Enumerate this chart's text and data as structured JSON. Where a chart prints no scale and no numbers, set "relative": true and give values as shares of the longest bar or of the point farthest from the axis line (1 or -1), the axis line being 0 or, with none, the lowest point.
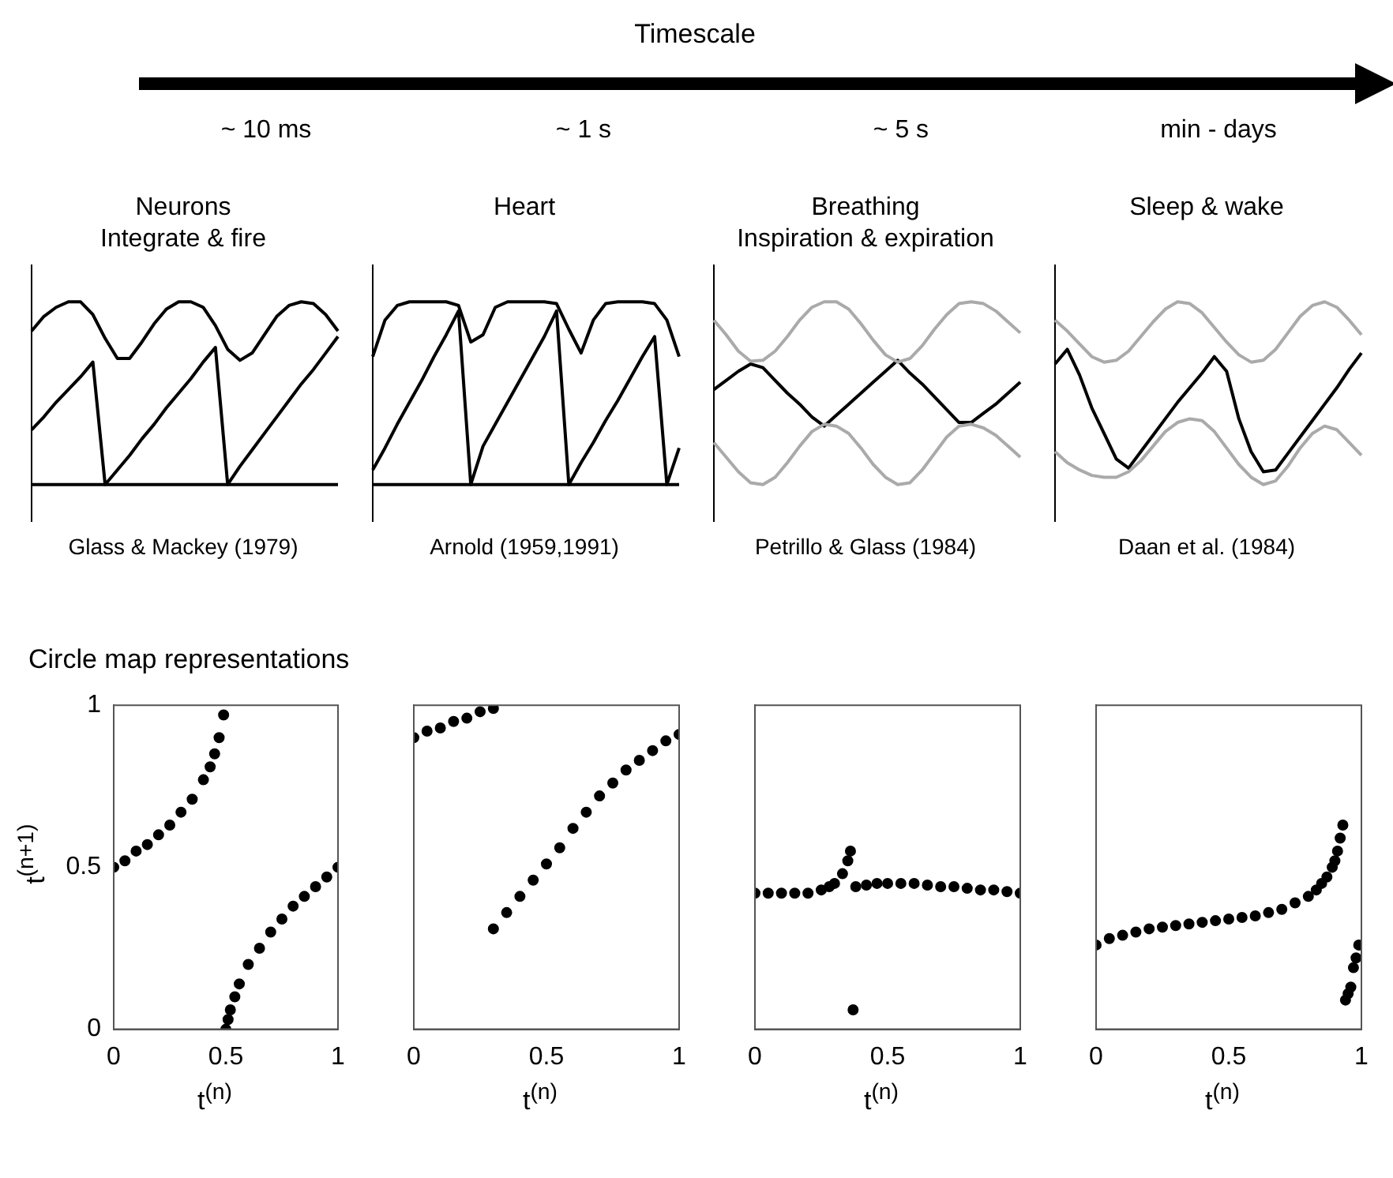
{
  "chart_data": [
    {
      "type": "other",
      "title": "Timescale",
      "annotations": [
        "~ 10 ms",
        "~ 1 s",
        "~ 5 s",
        "min - days"
      ]
    },
    {
      "type": "line",
      "title": "Neurons",
      "subtitle": "Integrate & fire",
      "annotations": [
        "Glass & Mackey (1979)"
      ],
      "relative": true,
      "marker": "none",
      "categories": [
        null,
        null,
        null,
        null,
        null,
        null,
        null,
        null,
        null,
        null,
        null,
        null,
        null,
        null,
        null,
        null,
        null,
        null,
        null,
        null,
        null,
        null,
        null,
        null,
        null,
        null
      ],
      "series": [
        {
          "color": "#000000",
          "values": [
            0.84,
            0.92,
            0.97,
            1.0,
            1.0,
            0.93,
            0.8,
            0.69,
            0.69,
            0.78,
            0.88,
            0.96,
            1.0,
            1.0,
            0.97,
            0.87,
            0.74,
            0.68,
            0.72,
            0.82,
            0.92,
            0.98,
            1.0,
            0.99,
            0.93,
            0.84
          ]
        },
        {
          "color": "#000000",
          "values": [
            0.3,
            0.37,
            0.45,
            0.52,
            0.59,
            0.67,
            0,
            0.08,
            0.16,
            0.25,
            0.33,
            0.42,
            0.5,
            0.58,
            0.67,
            0.75,
            0,
            0.1,
            0.19,
            0.28,
            0.37,
            0.46,
            0.55,
            0.63,
            0.72,
            0.81
          ]
        },
        {
          "color": "#000000",
          "values": [
            0,
            0,
            0,
            0,
            0,
            0,
            0,
            0,
            0,
            0,
            0,
            0,
            0,
            0,
            0,
            0,
            0,
            0,
            0,
            0,
            0,
            0,
            0,
            0,
            0,
            0
          ]
        }
      ]
    },
    {
      "type": "line",
      "title": "Heart",
      "annotations": [
        "Arnold (1959,1991)"
      ],
      "relative": true,
      "marker": "none",
      "categories": [
        null,
        null,
        null,
        null,
        null,
        null,
        null,
        null,
        null,
        null,
        null,
        null,
        null,
        null,
        null,
        null,
        null,
        null,
        null,
        null,
        null,
        null,
        null,
        null,
        null,
        null
      ],
      "series": [
        {
          "color": "#000000",
          "values": [
            0.7,
            0.9,
            0.98,
            1,
            1,
            1,
            1,
            0.98,
            0.78,
            0.82,
            0.97,
            1,
            1,
            1,
            1,
            0.99,
            0.85,
            0.72,
            0.9,
            0.99,
            1,
            1,
            1,
            0.99,
            0.9,
            0.7
          ]
        },
        {
          "color": "#000000",
          "values": [
            0.08,
            0.2,
            0.33,
            0.45,
            0.57,
            0.7,
            0.82,
            0.95,
            0,
            0.21,
            0.33,
            0.45,
            0.57,
            0.69,
            0.81,
            0.95,
            0,
            0.12,
            0.23,
            0.35,
            0.46,
            0.58,
            0.7,
            0.81,
            0,
            0.2
          ]
        },
        {
          "color": "#000000",
          "values": [
            0,
            0,
            0,
            0,
            0,
            0,
            0,
            0,
            0,
            0,
            0,
            0,
            0,
            0,
            0,
            0,
            0,
            0,
            0,
            0,
            0,
            0,
            0,
            0,
            0,
            0
          ]
        }
      ]
    },
    {
      "type": "line",
      "title": "Breathing",
      "subtitle": "Inspiration & expiration",
      "annotations": [
        "Petrillo & Glass (1984)"
      ],
      "relative": true,
      "marker": "none",
      "categories": [
        null,
        null,
        null,
        null,
        null,
        null,
        null,
        null,
        null,
        null,
        null,
        null,
        null,
        null,
        null,
        null,
        null,
        null,
        null,
        null,
        null,
        null,
        null,
        null,
        null,
        null
      ],
      "series": [
        {
          "color": "#aaaaaa",
          "values": [
            0.9,
            0.82,
            0.73,
            0.675,
            0.68,
            0.73,
            0.81,
            0.9,
            0.97,
            1.0,
            1.0,
            0.96,
            0.88,
            0.79,
            0.71,
            0.67,
            0.69,
            0.76,
            0.85,
            0.93,
            0.99,
            1.0,
            0.99,
            0.95,
            0.89,
            0.83
          ]
        },
        {
          "color": "#aaaaaa",
          "values": [
            0.23,
            0.15,
            0.07,
            0.01,
            0,
            0.04,
            0.12,
            0.21,
            0.29,
            0.33,
            0.32,
            0.28,
            0.2,
            0.11,
            0.04,
            0,
            0.01,
            0.08,
            0.17,
            0.26,
            0.32,
            0.33,
            0.31,
            0.27,
            0.21,
            0.15
          ]
        },
        {
          "color": "#000000",
          "values": [
            0.52,
            0.57,
            0.62,
            0.66,
            0.64,
            0.57,
            0.5,
            0.44,
            0.37,
            0.32,
            0.38,
            0.44,
            0.5,
            0.56,
            0.62,
            0.68,
            0.61,
            0.55,
            0.48,
            0.41,
            0.34,
            0.34,
            0.39,
            0.44,
            0.5,
            0.56
          ]
        }
      ]
    },
    {
      "type": "line",
      "title": "Sleep & wake",
      "annotations": [
        "Daan et al. (1984)"
      ],
      "relative": true,
      "marker": "none",
      "categories": [
        null,
        null,
        null,
        null,
        null,
        null,
        null,
        null,
        null,
        null,
        null,
        null,
        null,
        null,
        null,
        null,
        null,
        null,
        null,
        null,
        null,
        null,
        null,
        null,
        null,
        null
      ],
      "series": [
        {
          "color": "#aaaaaa",
          "values": [
            0.9,
            0.84,
            0.77,
            0.7,
            0.67,
            0.68,
            0.73,
            0.81,
            0.89,
            0.96,
            1.0,
            0.99,
            0.94,
            0.86,
            0.78,
            0.71,
            0.67,
            0.68,
            0.74,
            0.83,
            0.92,
            0.98,
            1.0,
            0.97,
            0.9,
            0.82
          ]
        },
        {
          "color": "#aaaaaa",
          "values": [
            0.18,
            0.12,
            0.08,
            0.05,
            0.04,
            0.04,
            0.07,
            0.13,
            0.21,
            0.29,
            0.34,
            0.36,
            0.35,
            0.29,
            0.2,
            0.11,
            0.04,
            0,
            0.02,
            0.1,
            0.2,
            0.28,
            0.32,
            0.3,
            0.23,
            0.16
          ]
        },
        {
          "color": "#000000",
          "values": [
            0.66,
            0.74,
            0.6,
            0.42,
            0.28,
            0.14,
            0.09,
            0.18,
            0.27,
            0.36,
            0.45,
            0.53,
            0.61,
            0.7,
            0.62,
            0.36,
            0.18,
            0.07,
            0.08,
            0.17,
            0.26,
            0.35,
            0.44,
            0.53,
            0.63,
            0.72
          ]
        }
      ]
    },
    {
      "type": "other",
      "title": "Circle map representations"
    },
    {
      "type": "scatter",
      "xlabel": "t$^{(n)}$",
      "ylabel": "t$^{(n+1)}$",
      "xlim": [
        0,
        1
      ],
      "ylim": [
        0,
        1
      ],
      "xticks": [
        0,
        0.5,
        1
      ],
      "yticks": [
        0,
        0.5,
        1
      ],
      "marker": "circle",
      "series": [
        {
          "color": "#000000",
          "x": [
            0,
            0.05,
            0.1,
            0.15,
            0.2,
            0.25,
            0.3,
            0.35,
            0.4,
            0.43,
            0.45,
            0.47,
            0.49
          ],
          "values": [
            0.5,
            0.52,
            0.55,
            0.57,
            0.6,
            0.63,
            0.67,
            0.71,
            0.77,
            0.81,
            0.85,
            0.9,
            0.97
          ]
        },
        {
          "color": "#000000",
          "x": [
            0.5,
            0.51,
            0.52,
            0.54,
            0.56,
            0.6,
            0.65,
            0.7,
            0.75,
            0.8,
            0.85,
            0.9,
            0.95,
            1
          ],
          "values": [
            0,
            0.03,
            0.06,
            0.1,
            0.14,
            0.2,
            0.25,
            0.3,
            0.34,
            0.38,
            0.41,
            0.44,
            0.47,
            0.5
          ]
        }
      ]
    },
    {
      "type": "scatter",
      "xlabel": "t$^{(n)}$",
      "xlim": [
        0,
        1
      ],
      "ylim": [
        0,
        1
      ],
      "xticks": [
        0,
        0.5,
        1
      ],
      "yticks": [
        0,
        0.5,
        1
      ],
      "marker": "circle",
      "tick_labels": "x",
      "series": [
        {
          "color": "#000000",
          "x": [
            0,
            0.05,
            0.1,
            0.15,
            0.2,
            0.25,
            0.3
          ],
          "values": [
            0.9,
            0.92,
            0.93,
            0.95,
            0.96,
            0.98,
            0.99
          ]
        },
        {
          "color": "#000000",
          "x": [
            0.3,
            0.35,
            0.4,
            0.45,
            0.5,
            0.55,
            0.6,
            0.65,
            0.7,
            0.75,
            0.8,
            0.85,
            0.9,
            0.95,
            1
          ],
          "values": [
            0.31,
            0.36,
            0.41,
            0.46,
            0.51,
            0.56,
            0.62,
            0.67,
            0.72,
            0.76,
            0.8,
            0.83,
            0.86,
            0.89,
            0.91
          ]
        }
      ]
    },
    {
      "type": "scatter",
      "xlabel": "t$^{(n)}$",
      "xlim": [
        0,
        1
      ],
      "ylim": [
        0,
        1
      ],
      "xticks": [
        0,
        0.5,
        1
      ],
      "yticks": [
        0,
        0.5,
        1
      ],
      "marker": "circle",
      "tick_labels": "x",
      "series": [
        {
          "color": "#000000",
          "x": [
            0,
            0.05,
            0.1,
            0.15,
            0.2,
            0.25,
            0.28,
            0.3,
            0.33,
            0.35,
            0.36
          ],
          "values": [
            0.42,
            0.42,
            0.42,
            0.42,
            0.42,
            0.43,
            0.44,
            0.45,
            0.48,
            0.52,
            0.55
          ]
        },
        {
          "color": "#000000",
          "x": [
            0.38,
            0.42,
            0.46,
            0.5,
            0.55,
            0.6,
            0.65,
            0.7,
            0.75,
            0.8,
            0.85,
            0.9,
            0.95,
            1
          ],
          "values": [
            0.44,
            0.445,
            0.45,
            0.45,
            0.45,
            0.45,
            0.445,
            0.44,
            0.44,
            0.435,
            0.43,
            0.43,
            0.425,
            0.42
          ]
        },
        {
          "color": "#000000",
          "x": [
            0.37
          ],
          "values": [
            0.06
          ]
        }
      ]
    },
    {
      "type": "scatter",
      "xlabel": "t$^{(n)}$",
      "xlim": [
        0,
        1
      ],
      "ylim": [
        0,
        1
      ],
      "xticks": [
        0,
        0.5,
        1
      ],
      "yticks": [
        0,
        0.5,
        1
      ],
      "marker": "circle",
      "tick_labels": "x",
      "series": [
        {
          "color": "#000000",
          "x": [
            0,
            0.05,
            0.1,
            0.15,
            0.2,
            0.25,
            0.3,
            0.35,
            0.4,
            0.45,
            0.5,
            0.55,
            0.6,
            0.65,
            0.7,
            0.75,
            0.8,
            0.83,
            0.85,
            0.87,
            0.89,
            0.9,
            0.91,
            0.92,
            0.93
          ],
          "values": [
            0.26,
            0.28,
            0.29,
            0.3,
            0.31,
            0.315,
            0.32,
            0.325,
            0.33,
            0.335,
            0.34,
            0.345,
            0.35,
            0.36,
            0.37,
            0.39,
            0.41,
            0.43,
            0.45,
            0.47,
            0.5,
            0.52,
            0.55,
            0.59,
            0.63
          ]
        },
        {
          "color": "#000000",
          "x": [
            0.94,
            0.95,
            0.96,
            0.97,
            0.98,
            0.99
          ],
          "values": [
            0.09,
            0.11,
            0.13,
            0.19,
            0.22,
            0.26
          ]
        }
      ]
    }
  ]
}
